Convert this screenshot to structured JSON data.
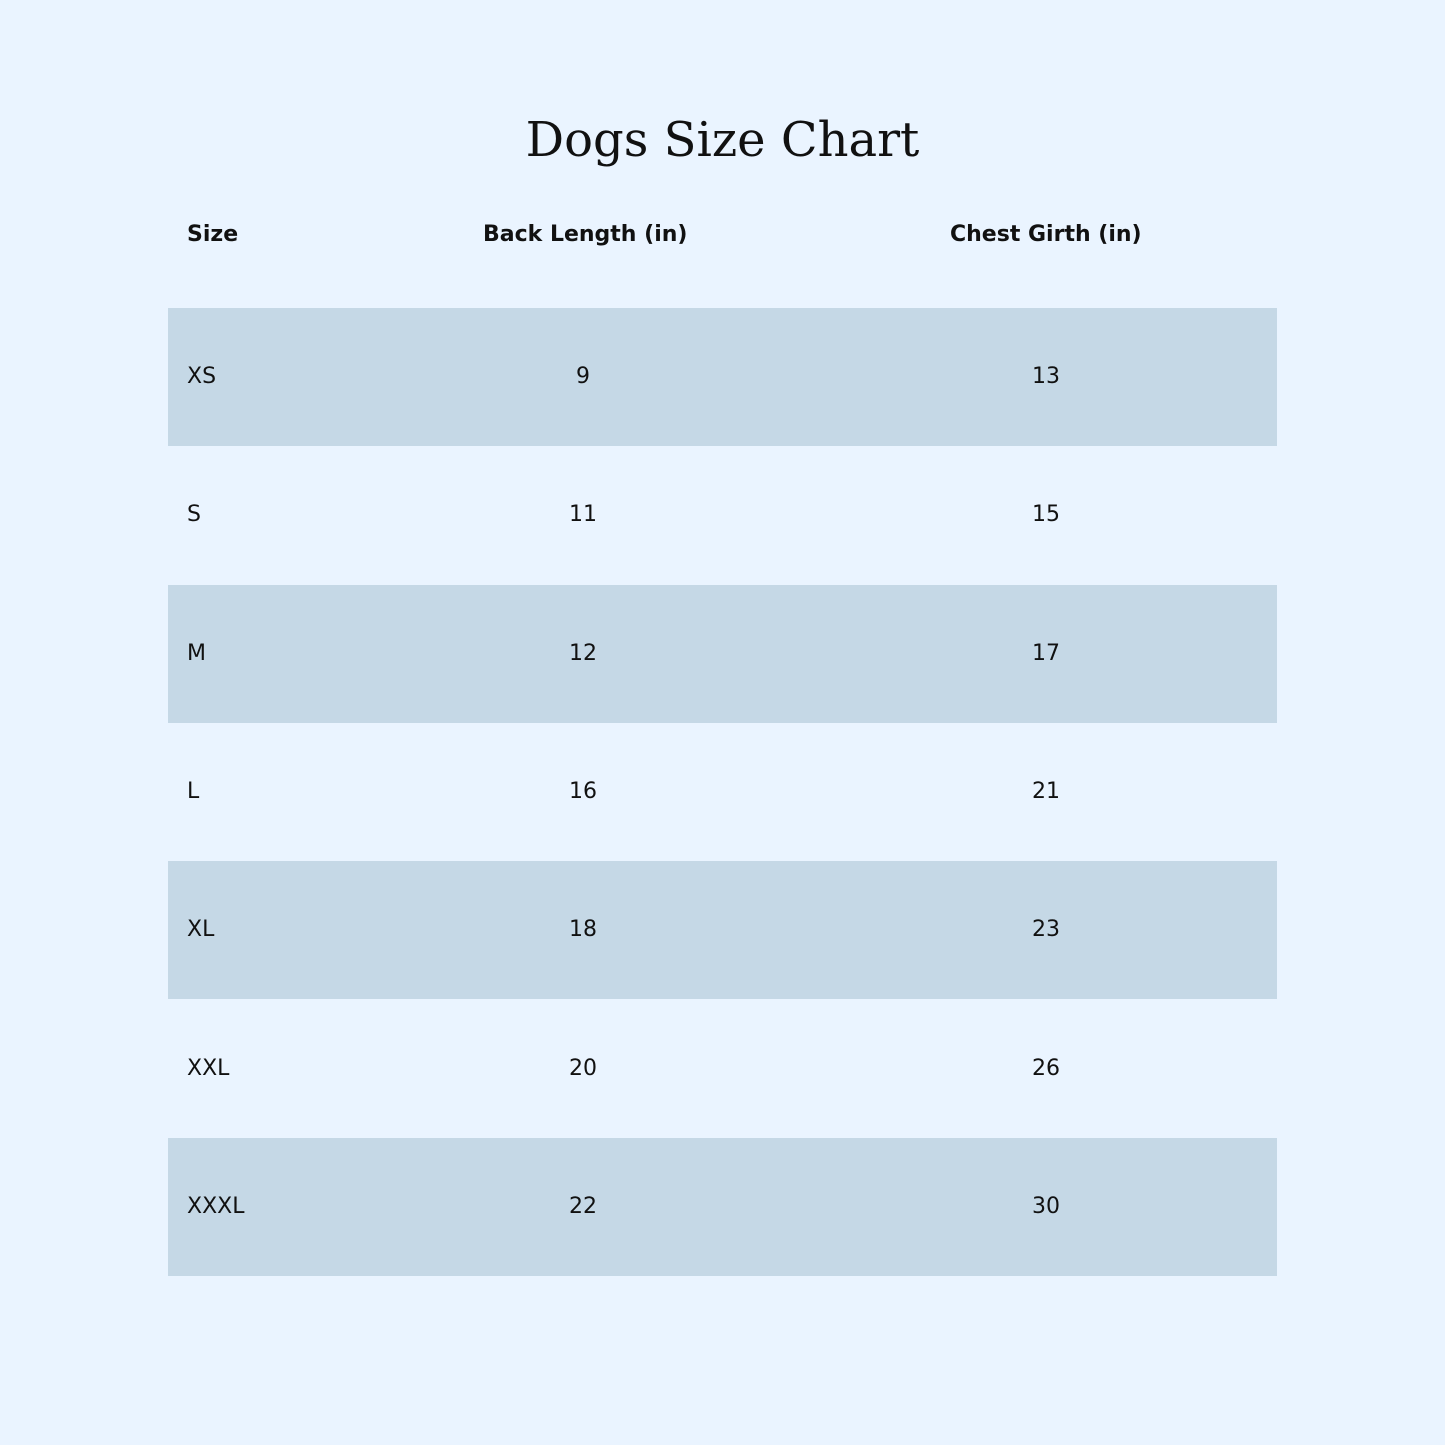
{
  "title": "Dogs Size Chart",
  "headers": [
    "Size",
    "Back Length (in)",
    "Chest Girth (in)"
  ],
  "rows": [
    [
      "XS",
      "9",
      "13"
    ],
    [
      "S",
      "11",
      "15"
    ],
    [
      "M",
      "12",
      "17"
    ],
    [
      "L",
      "16",
      "21"
    ],
    [
      "XL",
      "18",
      "23"
    ],
    [
      "XXL",
      "20",
      "26"
    ],
    [
      "XXXL",
      "22",
      "30"
    ]
  ],
  "colors": {
    "background": "#eaf4ff",
    "row_shade": "#c5d8e6"
  }
}
